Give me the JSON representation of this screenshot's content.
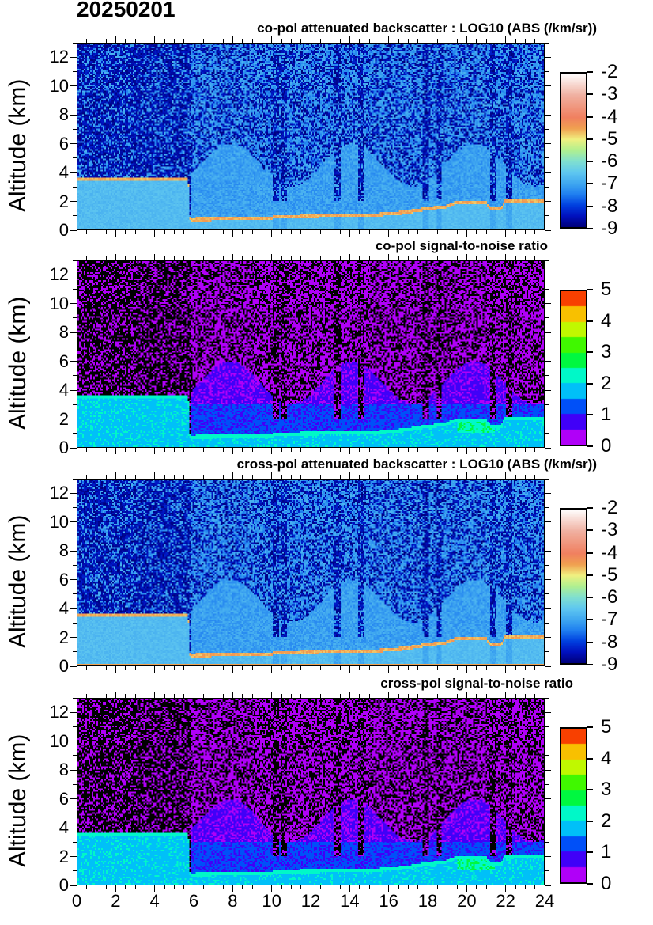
{
  "title": "20250201",
  "chart_data": [
    {
      "type": "heatmap",
      "title": "co-pol attenuated backscatter : LOG10 (ABS (/km/sr))",
      "ylabel": "Altitude (km)",
      "xlabel": "",
      "xlim": [
        0,
        24
      ],
      "ylim": [
        0,
        13
      ],
      "yticks": [
        "0",
        "2",
        "4",
        "6",
        "8",
        "10",
        "12"
      ],
      "colorbar": {
        "min": -9,
        "max": -2,
        "ticks": [
          "-2",
          "-3",
          "-4",
          "-5",
          "-6",
          "-7",
          "-8",
          "-9"
        ],
        "colormap": "rainbow-white"
      },
      "kind": "backscatter"
    },
    {
      "type": "heatmap",
      "title": "co-pol signal-to-noise ratio",
      "ylabel": "Altitude (km)",
      "xlabel": "",
      "xlim": [
        0,
        24
      ],
      "ylim": [
        0,
        13
      ],
      "yticks": [
        "0",
        "2",
        "4",
        "6",
        "8",
        "10",
        "12"
      ],
      "colorbar": {
        "min": 0,
        "max": 5,
        "ticks": [
          "5",
          "4",
          "3",
          "2",
          "1",
          "0"
        ],
        "colors": [
          "#b000f8",
          "#4000f8",
          "#0050f8",
          "#00c0f8",
          "#00f8c8",
          "#00f840",
          "#40f800",
          "#c0f800",
          "#f8c000",
          "#f84000"
        ]
      },
      "kind": "snr"
    },
    {
      "type": "heatmap",
      "title": "cross-pol attenuated backscatter : LOG10 (ABS (/km/sr))",
      "ylabel": "Altitude (km)",
      "xlabel": "",
      "xlim": [
        0,
        24
      ],
      "ylim": [
        0,
        13
      ],
      "yticks": [
        "0",
        "2",
        "4",
        "6",
        "8",
        "10",
        "12"
      ],
      "colorbar": {
        "min": -9,
        "max": -2,
        "ticks": [
          "-2",
          "-3",
          "-4",
          "-5",
          "-6",
          "-7",
          "-8",
          "-9"
        ],
        "colormap": "rainbow-white"
      },
      "kind": "backscatter"
    },
    {
      "type": "heatmap",
      "title": "cross-pol signal-to-noise ratio",
      "ylabel": "Altitude (km)",
      "xlabel": "",
      "xlim": [
        0,
        24
      ],
      "ylim": [
        0,
        13
      ],
      "yticks": [
        "0",
        "2",
        "4",
        "6",
        "8",
        "10",
        "12"
      ],
      "xticks": [
        "0",
        "2",
        "4",
        "6",
        "8",
        "10",
        "12",
        "14",
        "16",
        "18",
        "20",
        "22",
        "24"
      ],
      "colorbar": {
        "min": 0,
        "max": 5,
        "ticks": [
          "5",
          "4",
          "3",
          "2",
          "1",
          "0"
        ],
        "colors": [
          "#b000f8",
          "#4000f8",
          "#0050f8",
          "#00c0f8",
          "#00f8c8",
          "#00f840",
          "#40f800",
          "#c0f800",
          "#f8c000",
          "#f84000"
        ]
      },
      "kind": "snr"
    }
  ],
  "layer_top_km": {
    "x": [
      0,
      5.7,
      5.8,
      10,
      10.1,
      15,
      15.2,
      17,
      17.8,
      18.5,
      19,
      19.5,
      21,
      21.3,
      21.8,
      22,
      24
    ],
    "y": [
      3.5,
      3.5,
      0.7,
      0.8,
      0.9,
      1.0,
      1.0,
      1.2,
      1.4,
      1.5,
      1.6,
      1.9,
      1.9,
      1.4,
      1.4,
      2.0,
      2.0
    ]
  },
  "clear_columns_hours": [
    10.2,
    10.6,
    13.4,
    14.6,
    17.9,
    18.6,
    21.4,
    22.2
  ]
}
